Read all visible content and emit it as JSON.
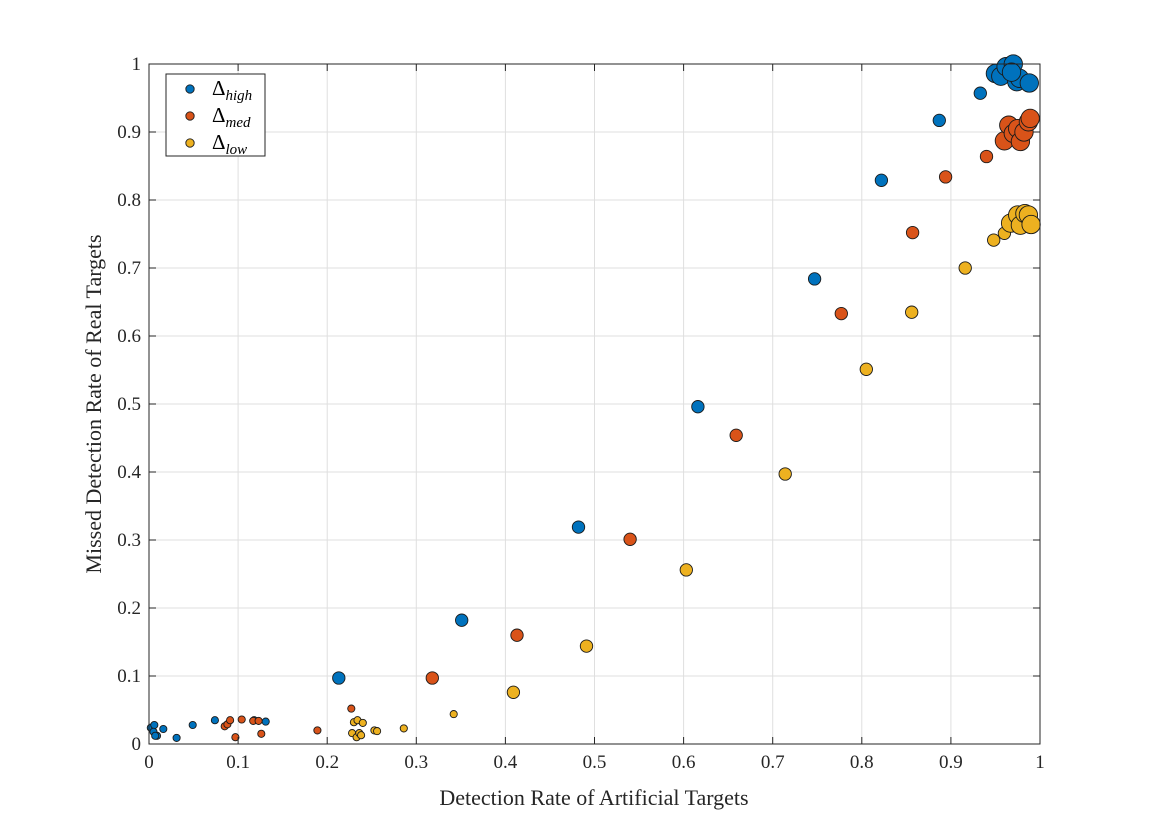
{
  "chart_data": {
    "type": "scatter",
    "title": "",
    "xlabel": "Detection Rate of Artificial Targets",
    "ylabel": "Missed Detection Rate of Real Targets",
    "xlim": [
      0,
      1
    ],
    "ylim": [
      0,
      1
    ],
    "xticks": [
      0,
      0.1,
      0.2,
      0.3,
      0.4,
      0.5,
      0.6,
      0.7,
      0.8,
      0.9,
      1
    ],
    "xtick_labels": [
      "0",
      "0.1",
      "0.2",
      "0.3",
      "0.4",
      "0.5",
      "0.6",
      "0.7",
      "0.8",
      "0.9",
      "1"
    ],
    "yticks": [
      0,
      0.1,
      0.2,
      0.3,
      0.4,
      0.5,
      0.6,
      0.7,
      0.8,
      0.9,
      1
    ],
    "ytick_labels": [
      "0",
      "0.1",
      "0.2",
      "0.3",
      "0.4",
      "0.5",
      "0.6",
      "0.7",
      "0.8",
      "0.9",
      "1"
    ],
    "grid": true,
    "legend_position": "top-left",
    "series": [
      {
        "name": "Δhigh",
        "symbol": "Δ",
        "subscript": "high",
        "color": "#0072BD",
        "points": [
          [
            0.002,
            0.024,
            1
          ],
          [
            0.006,
            0.028,
            1
          ],
          [
            0.005,
            0.018,
            1
          ],
          [
            0.009,
            0.012,
            1
          ],
          [
            0.007,
            0.012,
            1
          ],
          [
            0.016,
            0.022,
            1
          ],
          [
            0.031,
            0.009,
            1
          ],
          [
            0.049,
            0.028,
            1
          ],
          [
            0.074,
            0.035,
            1
          ],
          [
            0.118,
            0.035,
            1
          ],
          [
            0.131,
            0.033,
            1
          ],
          [
            0.213,
            0.097,
            2
          ],
          [
            0.351,
            0.182,
            2
          ],
          [
            0.482,
            0.319,
            2
          ],
          [
            0.616,
            0.496,
            2
          ],
          [
            0.747,
            0.684,
            2
          ],
          [
            0.822,
            0.829,
            2
          ],
          [
            0.887,
            0.917,
            2
          ],
          [
            0.933,
            0.957,
            2
          ],
          [
            0.95,
            0.986,
            3
          ],
          [
            0.956,
            0.982,
            3
          ],
          [
            0.962,
            0.996,
            3
          ],
          [
            0.97,
            1.0,
            3
          ],
          [
            0.974,
            0.974,
            3
          ],
          [
            0.977,
            0.979,
            3
          ],
          [
            0.968,
            0.988,
            3
          ],
          [
            0.988,
            0.972,
            3
          ]
        ]
      },
      {
        "name": "Δmed",
        "symbol": "Δ",
        "subscript": "med",
        "color": "#D95319",
        "points": [
          [
            0.085,
            0.026,
            1
          ],
          [
            0.088,
            0.029,
            1
          ],
          [
            0.091,
            0.035,
            1
          ],
          [
            0.097,
            0.01,
            1
          ],
          [
            0.104,
            0.036,
            1
          ],
          [
            0.117,
            0.034,
            1
          ],
          [
            0.123,
            0.034,
            1
          ],
          [
            0.126,
            0.015,
            1
          ],
          [
            0.189,
            0.02,
            1
          ],
          [
            0.227,
            0.052,
            1
          ],
          [
            0.318,
            0.097,
            2
          ],
          [
            0.413,
            0.16,
            2
          ],
          [
            0.54,
            0.301,
            2
          ],
          [
            0.659,
            0.454,
            2
          ],
          [
            0.777,
            0.633,
            2
          ],
          [
            0.857,
            0.752,
            2
          ],
          [
            0.894,
            0.834,
            2
          ],
          [
            0.94,
            0.864,
            2
          ],
          [
            0.96,
            0.887,
            3
          ],
          [
            0.965,
            0.91,
            3
          ],
          [
            0.97,
            0.898,
            3
          ],
          [
            0.975,
            0.905,
            3
          ],
          [
            0.978,
            0.886,
            3
          ],
          [
            0.982,
            0.9,
            3
          ],
          [
            0.987,
            0.915,
            3
          ],
          [
            0.989,
            0.92,
            3
          ]
        ]
      },
      {
        "name": "Δlow",
        "symbol": "Δ",
        "subscript": "low",
        "color": "#EDB120",
        "points": [
          [
            0.228,
            0.016,
            1
          ],
          [
            0.23,
            0.032,
            1
          ],
          [
            0.233,
            0.01,
            1
          ],
          [
            0.234,
            0.035,
            1
          ],
          [
            0.236,
            0.016,
            1
          ],
          [
            0.238,
            0.013,
            1
          ],
          [
            0.24,
            0.031,
            1
          ],
          [
            0.253,
            0.02,
            1
          ],
          [
            0.256,
            0.019,
            1
          ],
          [
            0.286,
            0.023,
            1
          ],
          [
            0.342,
            0.044,
            1
          ],
          [
            0.409,
            0.076,
            2
          ],
          [
            0.491,
            0.144,
            2
          ],
          [
            0.603,
            0.256,
            2
          ],
          [
            0.714,
            0.397,
            2
          ],
          [
            0.805,
            0.551,
            2
          ],
          [
            0.856,
            0.635,
            2
          ],
          [
            0.916,
            0.7,
            2
          ],
          [
            0.948,
            0.741,
            2
          ],
          [
            0.96,
            0.751,
            2
          ],
          [
            0.967,
            0.766,
            3
          ],
          [
            0.975,
            0.778,
            3
          ],
          [
            0.978,
            0.763,
            3
          ],
          [
            0.983,
            0.78,
            3
          ],
          [
            0.987,
            0.778,
            3
          ],
          [
            0.99,
            0.764,
            3
          ]
        ]
      }
    ]
  }
}
